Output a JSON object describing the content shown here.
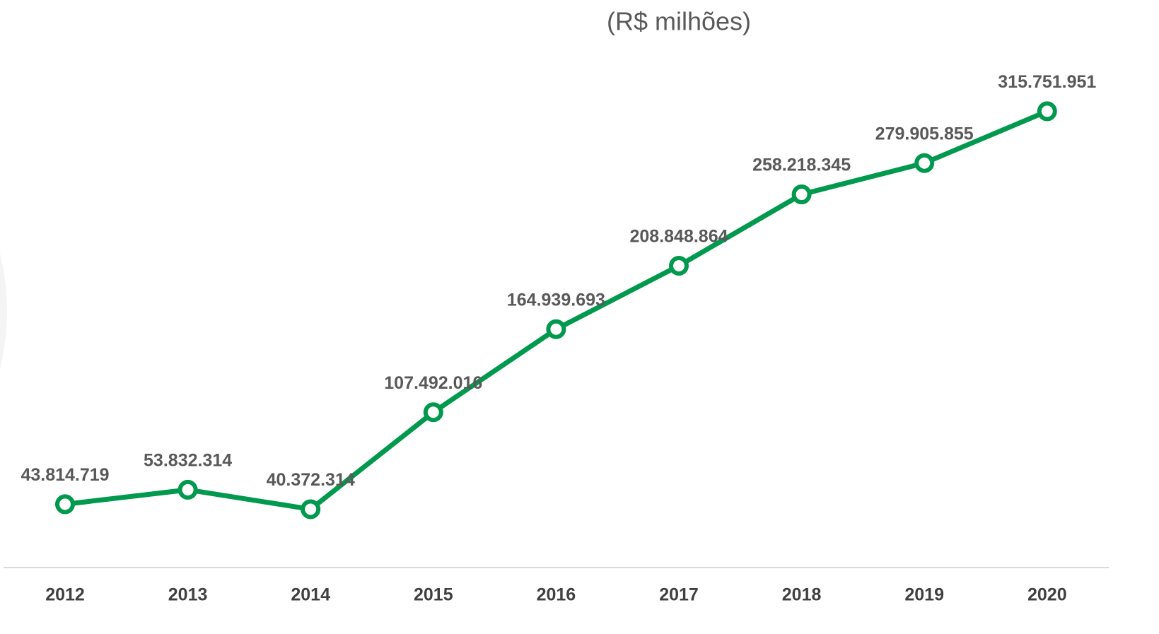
{
  "chart_data": {
    "type": "line",
    "title": "(R$ milhões)",
    "categories": [
      "2012",
      "2013",
      "2014",
      "2015",
      "2016",
      "2017",
      "2018",
      "2019",
      "2020"
    ],
    "series": [
      {
        "name": null,
        "color": "#00994d",
        "values": [
          43814719,
          53832314,
          40372314,
          107492016,
          164939693,
          208848864,
          258218345,
          279905855,
          315751951
        ],
        "value_labels": [
          "43.814.719",
          "53.832.314",
          "40.372.314",
          "107.492.016",
          "164.939.693",
          "208.848.864",
          "258.218.345",
          "279.905.855",
          "315.751.951"
        ]
      }
    ]
  }
}
